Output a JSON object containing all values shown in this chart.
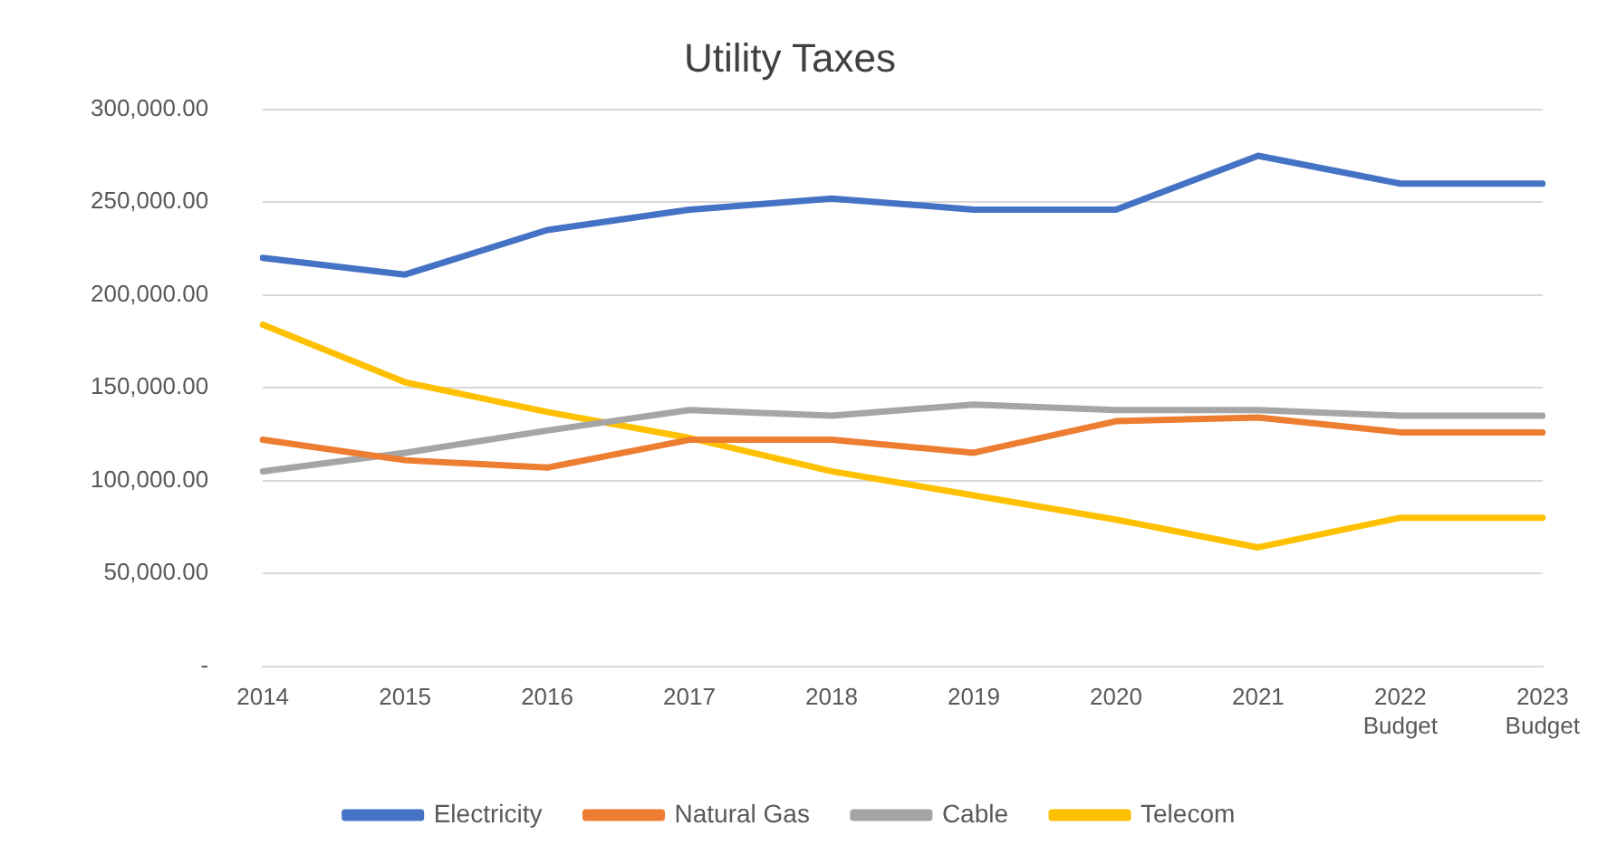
{
  "chart_data": {
    "type": "line",
    "title": "Utility Taxes",
    "categories": [
      "2014",
      "2015",
      "2016",
      "2017",
      "2018",
      "2019",
      "2020",
      "2021",
      "2022 Budget",
      "2023 Budget"
    ],
    "series": [
      {
        "name": "Electricity",
        "color": "#4472c4",
        "values": [
          220000,
          211000,
          235000,
          246000,
          252000,
          246000,
          246000,
          275000,
          260000,
          260000
        ]
      },
      {
        "name": "Natural Gas",
        "color": "#ed7d31",
        "values": [
          122000,
          111000,
          107000,
          122000,
          122000,
          115000,
          132000,
          134000,
          126000,
          126000
        ]
      },
      {
        "name": "Cable",
        "color": "#a5a5a5",
        "values": [
          105000,
          115000,
          127000,
          138000,
          135000,
          141000,
          138000,
          138000,
          135000,
          135000
        ]
      },
      {
        "name": "Telecom",
        "color": "#ffc000",
        "values": [
          184000,
          153000,
          137000,
          123000,
          105000,
          92000,
          79000,
          64000,
          80000,
          80000
        ]
      }
    ],
    "ylim": [
      0,
      300000
    ],
    "yticks": [
      {
        "value": 0,
        "label": "-"
      },
      {
        "value": 50000,
        "label": "50,000.00"
      },
      {
        "value": 100000,
        "label": "100,000.00"
      },
      {
        "value": 150000,
        "label": "150,000.00"
      },
      {
        "value": 200000,
        "label": "200,000.00"
      },
      {
        "value": 250000,
        "label": "250,000.00"
      },
      {
        "value": 300000,
        "label": "300,000.00"
      }
    ],
    "grid": "y",
    "legend": "bottom",
    "marker": "none",
    "line_style": "solid"
  }
}
